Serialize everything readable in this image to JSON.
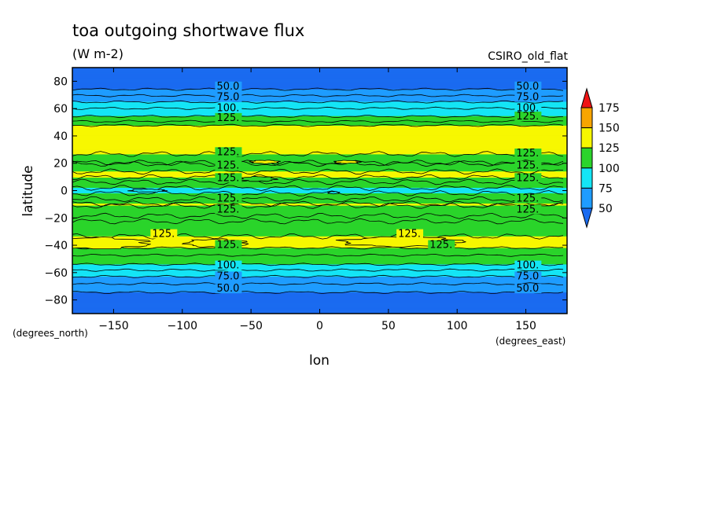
{
  "chart_data": {
    "type": "contour",
    "title": "toa outgoing shortwave flux",
    "subtitle": "(W m-2)",
    "source_label": "CSIRO_old_flat",
    "xlabel": "lon",
    "ylabel": "latitude",
    "x_unit": "(degrees_east)",
    "y_unit": "(degrees_north)",
    "xlim": [
      -180,
      180
    ],
    "ylim": [
      -90,
      90
    ],
    "x_ticks": [
      -150,
      -100,
      -50,
      0,
      50,
      100,
      150
    ],
    "y_ticks": [
      80,
      60,
      40,
      20,
      0,
      -20,
      -40,
      -60,
      -80
    ],
    "levels": [
      50,
      75,
      100,
      125,
      150,
      175
    ],
    "colorbar_labels": [
      "175",
      "150",
      "125",
      "100",
      "75",
      "50"
    ],
    "palette": {
      "below_50": "#1a6bf0",
      "50_75": "#1f9cff",
      "75_100": "#14e5f5",
      "100_125": "#2bd42b",
      "125_150": "#f7f700",
      "150_175": "#f8a500",
      "above_175": "#f01414"
    },
    "latitude_profile": [
      {
        "lat": 90,
        "value": 40
      },
      {
        "lat": 80,
        "value": 42
      },
      {
        "lat": 75,
        "value": 48
      },
      {
        "lat": 72,
        "value": 55
      },
      {
        "lat": 69,
        "value": 64
      },
      {
        "lat": 66,
        "value": 72
      },
      {
        "lat": 63,
        "value": 80
      },
      {
        "lat": 60,
        "value": 88
      },
      {
        "lat": 56,
        "value": 96
      },
      {
        "lat": 53,
        "value": 103
      },
      {
        "lat": 50,
        "value": 115
      },
      {
        "lat": 47,
        "value": 128
      },
      {
        "lat": 42,
        "value": 134
      },
      {
        "lat": 35,
        "value": 135
      },
      {
        "lat": 28,
        "value": 130
      },
      {
        "lat": 25,
        "value": 118
      },
      {
        "lat": 20,
        "value": 112
      },
      {
        "lat": 16,
        "value": 118
      },
      {
        "lat": 13,
        "value": 128
      },
      {
        "lat": 10,
        "value": 126
      },
      {
        "lat": 8,
        "value": 118
      },
      {
        "lat": 4,
        "value": 105
      },
      {
        "lat": 0,
        "value": 95
      },
      {
        "lat": -4,
        "value": 105
      },
      {
        "lat": -8,
        "value": 118
      },
      {
        "lat": -10,
        "value": 127
      },
      {
        "lat": -14,
        "value": 120
      },
      {
        "lat": -20,
        "value": 110
      },
      {
        "lat": -28,
        "value": 118
      },
      {
        "lat": -33,
        "value": 124
      },
      {
        "lat": -36,
        "value": 130
      },
      {
        "lat": -41,
        "value": 128
      },
      {
        "lat": -44,
        "value": 118
      },
      {
        "lat": -50,
        "value": 108
      },
      {
        "lat": -55,
        "value": 98
      },
      {
        "lat": -58,
        "value": 88
      },
      {
        "lat": -61,
        "value": 80
      },
      {
        "lat": -64,
        "value": 72
      },
      {
        "lat": -68,
        "value": 63
      },
      {
        "lat": -72,
        "value": 55
      },
      {
        "lat": -76,
        "value": 47
      },
      {
        "lat": -80,
        "value": 42
      },
      {
        "lat": -90,
        "value": 40
      }
    ],
    "contour_labels": [
      {
        "text": "50.0",
        "lon": -75,
        "lat": 74
      },
      {
        "text": "75.0",
        "lon": -75,
        "lat": 66
      },
      {
        "text": "100.",
        "lon": -75,
        "lat": 58
      },
      {
        "text": "125.",
        "lon": -75,
        "lat": 51
      },
      {
        "text": "50.0",
        "lon": 143,
        "lat": 74
      },
      {
        "text": "75.0",
        "lon": 143,
        "lat": 66
      },
      {
        "text": "100.",
        "lon": 143,
        "lat": 58
      },
      {
        "text": "125.",
        "lon": 143,
        "lat": 52
      },
      {
        "text": "125.",
        "lon": -75,
        "lat": 26
      },
      {
        "text": "125.",
        "lon": -75,
        "lat": 16
      },
      {
        "text": "125.",
        "lon": -75,
        "lat": 7
      },
      {
        "text": "125.",
        "lon": 143,
        "lat": 25
      },
      {
        "text": "125.",
        "lon": 143,
        "lat": 16
      },
      {
        "text": "125.",
        "lon": 143,
        "lat": 7
      },
      {
        "text": "125.",
        "lon": -75,
        "lat": -8
      },
      {
        "text": "125.",
        "lon": -75,
        "lat": -16
      },
      {
        "text": "125.",
        "lon": 143,
        "lat": -8
      },
      {
        "text": "125.",
        "lon": 143,
        "lat": -16
      },
      {
        "text": "125.",
        "lon": -122,
        "lat": -34
      },
      {
        "text": "125.",
        "lon": -75,
        "lat": -42
      },
      {
        "text": "125.",
        "lon": 57,
        "lat": -34
      },
      {
        "text": "125.",
        "lon": 80,
        "lat": -42
      },
      {
        "text": "100.",
        "lon": -75,
        "lat": -57
      },
      {
        "text": "75.0",
        "lon": -75,
        "lat": -65
      },
      {
        "text": "50.0",
        "lon": -75,
        "lat": -74
      },
      {
        "text": "100.",
        "lon": 143,
        "lat": -57
      },
      {
        "text": "75.0",
        "lon": 143,
        "lat": -65
      },
      {
        "text": "50.0",
        "lon": 143,
        "lat": -74
      }
    ]
  }
}
